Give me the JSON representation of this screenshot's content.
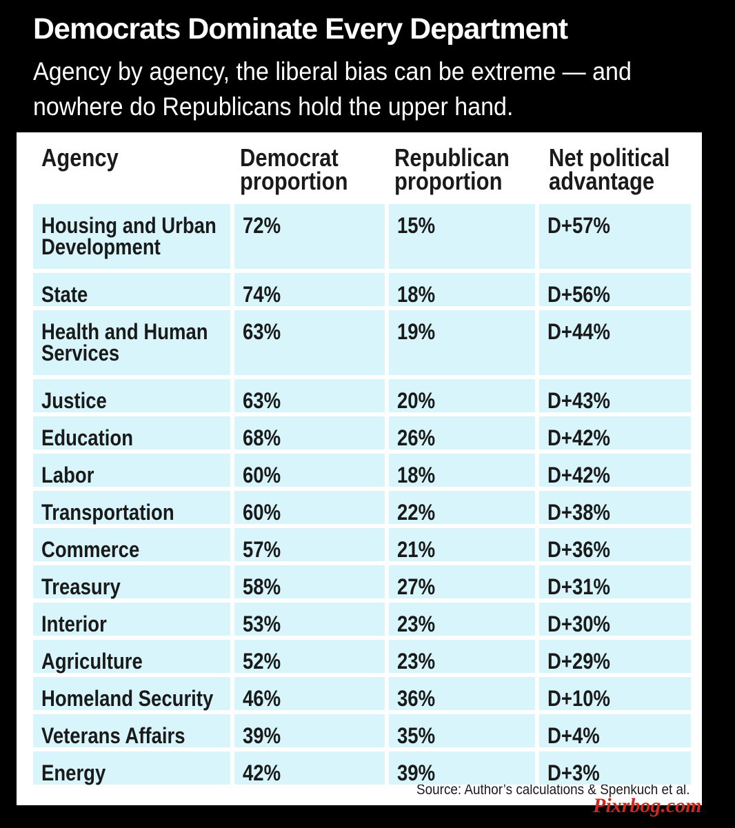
{
  "title": "Democrats Dominate Every Department",
  "subtitle": "Agency by agency, the liberal bias can be extreme — and nowhere do Republicans hold the upper hand.",
  "source": "Source: Author’s calculations & Spenkuch et al.",
  "watermark": "Pixrbog.com",
  "colors": {
    "background": "#000000",
    "panel": "#ffffff",
    "cell": "#d7f5fb",
    "watermark": "#cc2a1e"
  },
  "chart_data": {
    "type": "table",
    "columns": [
      "Agency",
      "Democrat proportion",
      "Republican proportion",
      "Net political advantage"
    ],
    "column_lines": [
      [
        "Agency"
      ],
      [
        "Democrat",
        "proportion"
      ],
      [
        "Republican",
        "proportion"
      ],
      [
        "Net political",
        "advantage"
      ]
    ],
    "rows": [
      {
        "agency": "Housing and Urban Development",
        "agency_lines": [
          "Housing and Urban",
          "Development"
        ],
        "dem": "72%",
        "rep": "15%",
        "net": "D+57%"
      },
      {
        "agency": "State",
        "agency_lines": [
          "State"
        ],
        "dem": "74%",
        "rep": "18%",
        "net": "D+56%"
      },
      {
        "agency": "Health and Human Services",
        "agency_lines": [
          "Health and Human",
          "Services"
        ],
        "dem": "63%",
        "rep": "19%",
        "net": "D+44%"
      },
      {
        "agency": "Justice",
        "agency_lines": [
          "Justice"
        ],
        "dem": "63%",
        "rep": "20%",
        "net": "D+43%"
      },
      {
        "agency": "Education",
        "agency_lines": [
          "Education"
        ],
        "dem": "68%",
        "rep": "26%",
        "net": "D+42%"
      },
      {
        "agency": "Labor",
        "agency_lines": [
          "Labor"
        ],
        "dem": "60%",
        "rep": "18%",
        "net": "D+42%"
      },
      {
        "agency": "Transportation",
        "agency_lines": [
          "Transportation"
        ],
        "dem": "60%",
        "rep": "22%",
        "net": "D+38%"
      },
      {
        "agency": "Commerce",
        "agency_lines": [
          "Commerce"
        ],
        "dem": "57%",
        "rep": "21%",
        "net": "D+36%"
      },
      {
        "agency": "Treasury",
        "agency_lines": [
          "Treasury"
        ],
        "dem": "58%",
        "rep": "27%",
        "net": "D+31%"
      },
      {
        "agency": "Interior",
        "agency_lines": [
          "Interior"
        ],
        "dem": "53%",
        "rep": "23%",
        "net": "D+30%"
      },
      {
        "agency": "Agriculture",
        "agency_lines": [
          "Agriculture"
        ],
        "dem": "52%",
        "rep": "23%",
        "net": "D+29%"
      },
      {
        "agency": "Homeland Security",
        "agency_lines": [
          "Homeland Security"
        ],
        "dem": "46%",
        "rep": "36%",
        "net": "D+10%"
      },
      {
        "agency": "Veterans Affairs",
        "agency_lines": [
          "Veterans Affairs"
        ],
        "dem": "39%",
        "rep": "35%",
        "net": "D+4%"
      },
      {
        "agency": "Energy",
        "agency_lines": [
          "Energy"
        ],
        "dem": "42%",
        "rep": "39%",
        "net": "D+3%"
      }
    ]
  }
}
